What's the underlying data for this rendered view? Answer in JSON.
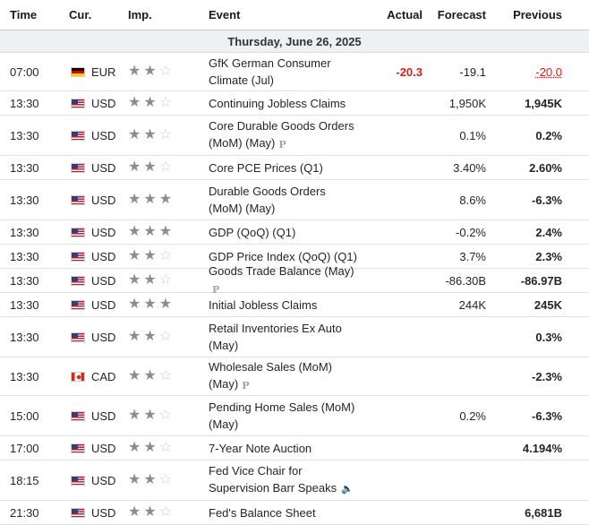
{
  "header": {
    "time": "Time",
    "currency": "Cur.",
    "importance": "Imp.",
    "event": "Event",
    "actual": "Actual",
    "forecast": "Forecast",
    "previous": "Previous"
  },
  "date_label": "Thursday, June 26, 2025",
  "colors": {
    "negative": "#d91e18",
    "star_on": "#8a8d91",
    "star_off": "#c9ccd0"
  },
  "rows": [
    {
      "time": "07:00",
      "currency": "EUR",
      "flag": "de",
      "importance": 2,
      "event": "GfK German Consumer Climate (Jul)",
      "actual": "-20.3",
      "forecast": "-19.1",
      "previous": "-20.0"
    },
    {
      "time": "13:30",
      "currency": "USD",
      "flag": "us",
      "importance": 2,
      "event": "Continuing Jobless Claims",
      "actual": "",
      "forecast": "1,950K",
      "previous": "1,945K"
    },
    {
      "time": "13:30",
      "currency": "USD",
      "flag": "us",
      "importance": 2,
      "event": "Core Durable Goods Orders (MoM) (May)",
      "actual": "",
      "forecast": "0.1%",
      "previous": "0.2%",
      "preliminary": true
    },
    {
      "time": "13:30",
      "currency": "USD",
      "flag": "us",
      "importance": 2,
      "event": "Core PCE Prices (Q1)",
      "actual": "",
      "forecast": "3.40%",
      "previous": "2.60%"
    },
    {
      "time": "13:30",
      "currency": "USD",
      "flag": "us",
      "importance": 3,
      "event": "Durable Goods Orders (MoM) (May)",
      "actual": "",
      "forecast": "8.6%",
      "previous": "-6.3%"
    },
    {
      "time": "13:30",
      "currency": "USD",
      "flag": "us",
      "importance": 3,
      "event": "GDP (QoQ) (Q1)",
      "actual": "",
      "forecast": "-0.2%",
      "previous": "2.4%"
    },
    {
      "time": "13:30",
      "currency": "USD",
      "flag": "us",
      "importance": 2,
      "event": "GDP Price Index (QoQ) (Q1)",
      "actual": "",
      "forecast": "3.7%",
      "previous": "2.3%"
    },
    {
      "time": "13:30",
      "currency": "USD",
      "flag": "us",
      "importance": 2,
      "event": "Goods Trade Balance (May)",
      "actual": "",
      "forecast": "-86.30B",
      "previous": "-86.97B",
      "preliminary": true
    },
    {
      "time": "13:30",
      "currency": "USD",
      "flag": "us",
      "importance": 3,
      "event": "Initial Jobless Claims",
      "actual": "",
      "forecast": "244K",
      "previous": "245K"
    },
    {
      "time": "13:30",
      "currency": "USD",
      "flag": "us",
      "importance": 2,
      "event": "Retail Inventories Ex Auto (May)",
      "actual": "",
      "forecast": "",
      "previous": "0.3%"
    },
    {
      "time": "13:30",
      "currency": "CAD",
      "flag": "ca",
      "importance": 2,
      "event": "Wholesale Sales (MoM) (May)",
      "actual": "",
      "forecast": "",
      "previous": "-2.3%",
      "preliminary": true
    },
    {
      "time": "15:00",
      "currency": "USD",
      "flag": "us",
      "importance": 2,
      "event": "Pending Home Sales (MoM) (May)",
      "actual": "",
      "forecast": "0.2%",
      "previous": "-6.3%"
    },
    {
      "time": "17:00",
      "currency": "USD",
      "flag": "us",
      "importance": 2,
      "event": "7-Year Note Auction",
      "actual": "",
      "forecast": "",
      "previous": "4.194%"
    },
    {
      "time": "18:15",
      "currency": "USD",
      "flag": "us",
      "importance": 2,
      "event": "Fed Vice Chair for Supervision Barr Speaks",
      "actual": "",
      "forecast": "",
      "previous": "",
      "speech": true
    },
    {
      "time": "21:30",
      "currency": "USD",
      "flag": "us",
      "importance": 2,
      "event": "Fed's Balance Sheet",
      "actual": "",
      "forecast": "",
      "previous": "6,681B"
    }
  ]
}
